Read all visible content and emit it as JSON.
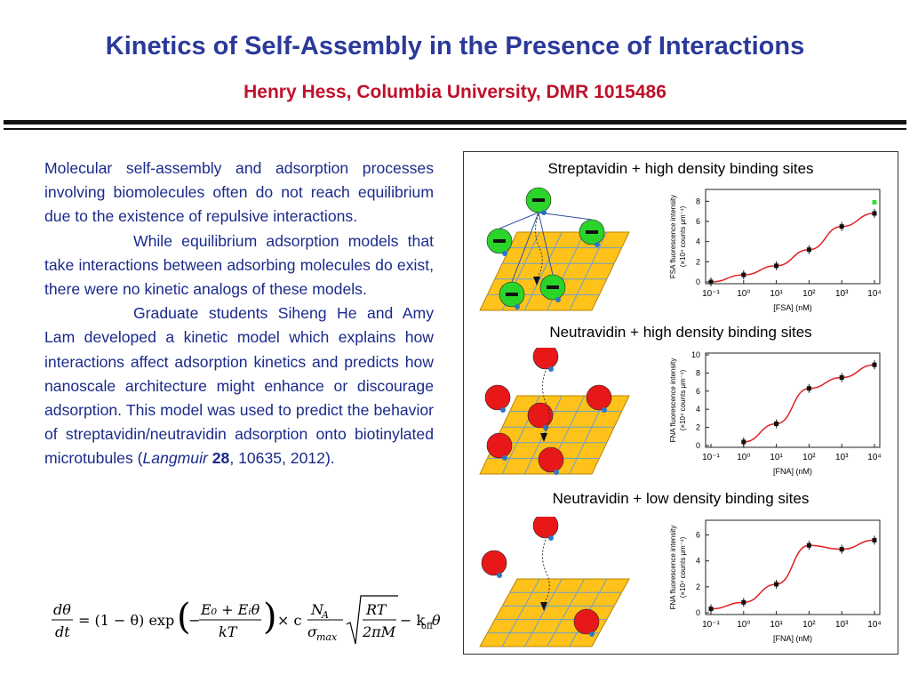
{
  "header": {
    "title": "Kinetics of Self-Assembly in the Presence of Interactions",
    "subtitle": "Henry Hess, Columbia University,  DMR 1015486"
  },
  "body": {
    "p1": "Molecular self-assembly and adsorption processes involving biomolecules often do not reach equilibrium due to the existence of repulsive interactions.",
    "p2": "While equilibrium adsorption models that take interactions between adsorbing molecules do exist, there were no kinetic analogs of these models.",
    "p3_pre": "Graduate students Siheng He and Amy Lam developed a kinetic model which explains how interactions affect adsorption kinetics and predicts how nanoscale architecture might enhance or discourage adsorption. This model was used to predict the behavior of streptavidin/neutravidin adsorption onto biotinylated microtubules (",
    "journal": "Langmuir",
    "volume": "28",
    "p3_post": ", 10635, 2012)."
  },
  "equation": {
    "lhs_num": "dθ",
    "lhs_den": "dt",
    "term1": "= (1 − θ) exp",
    "frac_num": "E₀ + Eᵢθ",
    "frac_den": "kT",
    "minus": "−",
    "times_c": "× c",
    "na_num": "N",
    "na_num_sub": "A",
    "na_den": "σ",
    "na_den_sub": "max",
    "sqrt_num": "RT",
    "sqrt_den": "2πM",
    "tail": "− k",
    "tail_sub": "off",
    "tail_end": "θ"
  },
  "figure": {
    "panels": [
      {
        "label": "Streptavidin + high density binding sites",
        "protein_color": "#2ad42a"
      },
      {
        "label": "Neutravidin + high density binding sites",
        "protein_color": "#e81818"
      },
      {
        "label": "Neutravidin + low density binding sites",
        "protein_color": "#e81818"
      }
    ]
  },
  "chart_data": [
    {
      "type": "scatter",
      "xlabel": "[FSA] (nM)",
      "ylabel": "FSA fluorescence intensity (×10⁴ counts μm⁻¹)",
      "x_ticks": [
        "10⁻¹",
        "10⁰",
        "10¹",
        "10²",
        "10³",
        "10⁴"
      ],
      "x_scale": "log",
      "xlim": [
        0.1,
        10000
      ],
      "y_ticks": [
        "0",
        "2",
        "4",
        "6",
        "8"
      ],
      "ylim": [
        0,
        9
      ],
      "points": [
        [
          0.1,
          0.0
        ],
        [
          1,
          0.7
        ],
        [
          10,
          1.6
        ],
        [
          100,
          3.2
        ],
        [
          1000,
          5.5
        ],
        [
          10000,
          6.8
        ]
      ],
      "extra_point": {
        "x": 10000,
        "y": 7.9,
        "color": "#33dd33"
      },
      "fit_color": "#e02020"
    },
    {
      "type": "scatter",
      "xlabel": "[FNA] (nM)",
      "ylabel": "FNA fluorescence intensity (×10⁴ counts μm⁻¹)",
      "x_ticks": [
        "10⁻¹",
        "10⁰",
        "10¹",
        "10²",
        "10³",
        "10⁴"
      ],
      "x_scale": "log",
      "xlim": [
        0.1,
        10000
      ],
      "y_ticks": [
        "0",
        "2",
        "4",
        "6",
        "8",
        "10"
      ],
      "ylim": [
        0,
        10
      ],
      "points": [
        [
          1,
          0.4
        ],
        [
          10,
          2.4
        ],
        [
          100,
          6.3
        ],
        [
          1000,
          7.5
        ],
        [
          10000,
          8.9
        ]
      ],
      "fit_color": "#e02020"
    },
    {
      "type": "scatter",
      "xlabel": "[FNA] (nM)",
      "ylabel": "FNA fluorescence intensity (×10⁴ counts μm⁻¹)",
      "x_ticks": [
        "10⁻¹",
        "10⁰",
        "10¹",
        "10²",
        "10³",
        "10⁴"
      ],
      "x_scale": "log",
      "xlim": [
        0.1,
        10000
      ],
      "y_ticks": [
        "0",
        "2",
        "4",
        "6"
      ],
      "ylim": [
        0,
        7
      ],
      "points": [
        [
          0.1,
          0.3
        ],
        [
          1,
          0.8
        ],
        [
          10,
          2.2
        ],
        [
          100,
          5.2
        ],
        [
          1000,
          4.9
        ],
        [
          10000,
          5.6
        ]
      ],
      "fit_color": "#e02020"
    }
  ]
}
